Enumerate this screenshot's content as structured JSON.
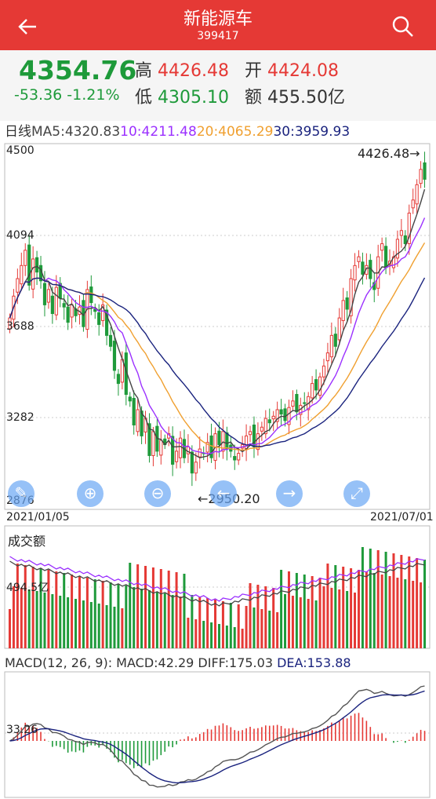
{
  "header": {
    "title": "新能源车",
    "code": "399417",
    "back_icon": "back-arrow-icon",
    "search_icon": "search-icon"
  },
  "quote": {
    "price": "4354.76",
    "change": "-53.36",
    "change_pct": "-1.21%",
    "high_label": "高",
    "high": "4426.48",
    "open_label": "开",
    "open": "4424.08",
    "low_label": "低",
    "low": "4305.10",
    "amount_label": "额",
    "amount": "455.50亿"
  },
  "ma": {
    "period_label": "日线",
    "ma5": "MA5:4320.83",
    "ma10": "10:4211.48",
    "ma20": "20:4065.29",
    "ma30": "30:3959.93"
  },
  "kline": {
    "y_ticks": [
      "4500",
      "4094",
      "3688",
      "3282",
      "2876"
    ],
    "max_label": "4426.48→",
    "min_label": "←2950.20",
    "start_date": "2021/01/05",
    "end_date": "2021/07/01",
    "closes": [
      3720,
      3820,
      3900,
      3960,
      4030,
      3870,
      3990,
      3930,
      3890,
      3780,
      3850,
      3740,
      3860,
      3810,
      3770,
      3700,
      3780,
      3730,
      3770,
      3680,
      3850,
      3790,
      3750,
      3690,
      3780,
      3640,
      3590,
      3480,
      3420,
      3530,
      3370,
      3340,
      3230,
      3300,
      3180,
      3260,
      3090,
      3200,
      3110,
      3160,
      3140,
      3190,
      3050,
      3110,
      3170,
      3080,
      3130,
      3010,
      3060,
      3120,
      3100,
      3150,
      3080,
      3190,
      3140,
      3200,
      3120,
      3110,
      3070,
      3100,
      3140,
      3180,
      3200,
      3130,
      3190,
      3220,
      3260,
      3240,
      3270,
      3300,
      3280,
      3250,
      3310,
      3340,
      3290,
      3320,
      3330,
      3360,
      3420,
      3390,
      3450,
      3500,
      3560,
      3640,
      3590,
      3720,
      3800,
      3760,
      3900,
      3960,
      4000,
      3920,
      3960,
      3900,
      3850,
      4000,
      4060,
      3950,
      3980,
      4000,
      4080,
      4120,
      4060,
      4200,
      4260,
      4330,
      4400,
      4354.76
    ],
    "ma5_color": "#444444",
    "ma10_color": "#9b30ff",
    "ma20_color": "#f0a030",
    "ma30_color": "#1a237e",
    "up_color": "#e53935",
    "down_color": "#1e9a3a"
  },
  "volume": {
    "label": "成交额",
    "y_tick": "494.5亿"
  },
  "macd": {
    "label": "MACD(12, 26, 9):",
    "macd": "MACD:42.29",
    "diff": "DIFF:175.03",
    "dea": "DEA:153.88",
    "y_tick": "33.26"
  },
  "buttons": [
    "zoom-in-icon",
    "zoom-out-icon",
    "scroll-left-icon",
    "scroll-right-icon",
    "fullscreen-icon"
  ]
}
